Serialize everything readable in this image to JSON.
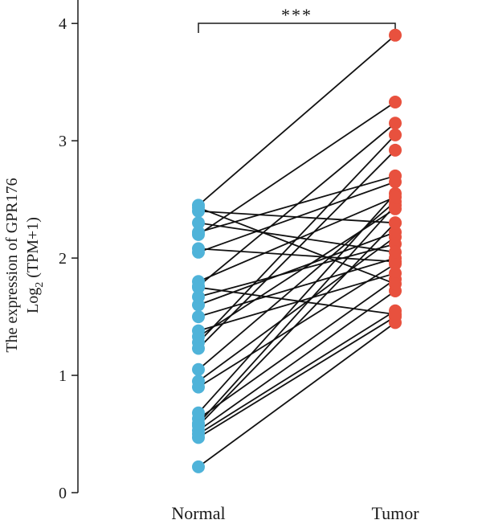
{
  "chart_data": {
    "type": "paired-dot",
    "categories": [
      "Normal",
      "Tumor"
    ],
    "ylabel_line1": "The expression of GPR176",
    "ylabel_line2_prefix": "Log",
    "ylabel_line2_sub": "2",
    "ylabel_line2_suffix": " (TPM+1)",
    "ylim": [
      0,
      4.2
    ],
    "yticks": [
      0,
      1,
      2,
      3,
      4
    ],
    "significance": "***",
    "colors": {
      "Normal": "#4fb3d9",
      "Tumor": "#e8513e",
      "line": "#111111"
    },
    "pairs": [
      [
        0.22,
        1.45
      ],
      [
        0.47,
        1.5
      ],
      [
        0.5,
        1.55
      ],
      [
        0.53,
        1.72
      ],
      [
        0.57,
        2.3
      ],
      [
        0.59,
        2.45
      ],
      [
        0.63,
        1.82
      ],
      [
        0.68,
        2.55
      ],
      [
        0.9,
        1.95
      ],
      [
        0.95,
        2.18
      ],
      [
        1.05,
        2.48
      ],
      [
        1.23,
        2.92
      ],
      [
        1.28,
        3.05
      ],
      [
        1.33,
        2.42
      ],
      [
        1.38,
        1.87
      ],
      [
        1.5,
        2.0
      ],
      [
        1.6,
        2.22
      ],
      [
        1.67,
        2.12
      ],
      [
        1.76,
        3.15
      ],
      [
        1.8,
        2.52
      ],
      [
        1.75,
        1.52
      ],
      [
        2.05,
        2.65
      ],
      [
        2.08,
        1.97
      ],
      [
        2.2,
        3.33
      ],
      [
        2.22,
        2.7
      ],
      [
        2.3,
        2.05
      ],
      [
        2.4,
        2.3
      ],
      [
        2.43,
        1.78
      ],
      [
        2.45,
        3.9
      ]
    ]
  }
}
